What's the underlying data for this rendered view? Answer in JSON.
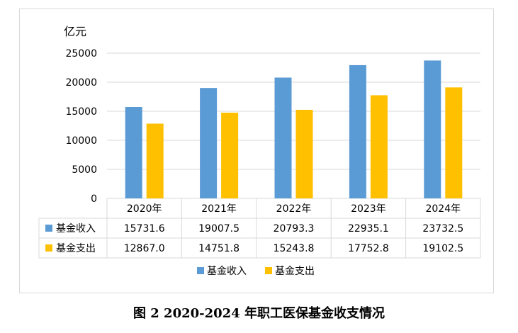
{
  "caption": "图 2   2020-2024 年职工医保基金收支情况",
  "chart_data": {
    "type": "bar",
    "unit_label": "亿元",
    "categories": [
      "2020年",
      "2021年",
      "2022年",
      "2023年",
      "2024年"
    ],
    "series": [
      {
        "name": "基金收入",
        "color": "#5b9bd5",
        "values": [
          15731.6,
          19007.5,
          20793.3,
          22935.1,
          23732.5
        ],
        "labels": [
          "15731.6",
          "19007.5",
          "20793.3",
          "22935.1",
          "23732.5"
        ]
      },
      {
        "name": "基金支出",
        "color": "#ffc000",
        "values": [
          12867.0,
          14751.8,
          15243.8,
          17752.8,
          19102.5
        ],
        "labels": [
          "12867.0",
          "14751.8",
          "15243.8",
          "17752.8",
          "19102.5"
        ]
      }
    ],
    "ylim": [
      0,
      25000
    ],
    "yticks": [
      0,
      5000,
      10000,
      15000,
      20000,
      25000
    ],
    "grid": true,
    "legend": "bottom",
    "data_table": true
  }
}
